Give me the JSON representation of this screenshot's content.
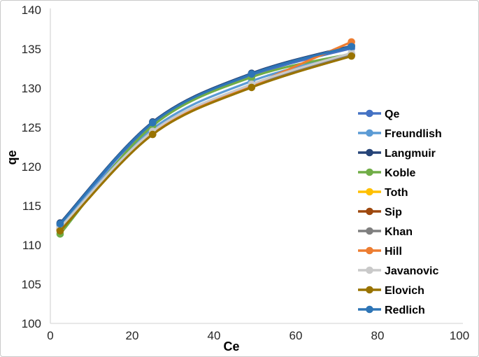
{
  "chart_data": {
    "type": "line",
    "title": "",
    "xlabel": "Ce",
    "ylabel": "qe",
    "xlim": [
      0,
      100
    ],
    "ylim": [
      100,
      140
    ],
    "xticks": [
      0,
      20,
      40,
      60,
      80,
      100
    ],
    "yticks": [
      100,
      105,
      110,
      115,
      120,
      125,
      130,
      135,
      140
    ],
    "grid": false,
    "legend_position": "right",
    "marker": "circle",
    "axis_line_color": "#d9d9d9",
    "tick_label_color": "#262626",
    "x": [
      2.4,
      25.0,
      49.2,
      73.6
    ],
    "series": [
      {
        "name": "Qe",
        "color": "#4472C4",
        "values": [
          112.6,
          125.4,
          131.6,
          135.1
        ]
      },
      {
        "name": "Freundlish",
        "color": "#5B9BD5",
        "values": [
          112.4,
          124.8,
          130.9,
          134.4
        ]
      },
      {
        "name": "Langmuir",
        "color": "#264478",
        "values": [
          112.8,
          125.7,
          131.9,
          135.4
        ]
      },
      {
        "name": "Koble",
        "color": "#70AD47",
        "values": [
          111.4,
          125.2,
          131.4,
          134.4
        ]
      },
      {
        "name": "Toth",
        "color": "#FFC000",
        "values": [
          111.9,
          124.2,
          130.2,
          134.2
        ]
      },
      {
        "name": "Sip",
        "color": "#9E480E",
        "values": [
          111.9,
          124.2,
          130.2,
          134.2
        ]
      },
      {
        "name": "Khan",
        "color": "#7F7F7F",
        "values": [
          112.1,
          124.4,
          130.4,
          134.3
        ]
      },
      {
        "name": "Hill",
        "color": "#ED7D31",
        "values": [
          112.0,
          124.3,
          130.3,
          135.9
        ]
      },
      {
        "name": "Javanovic",
        "color": "#C9C9C9",
        "values": [
          112.2,
          124.5,
          130.5,
          134.5
        ]
      },
      {
        "name": "Elovich",
        "color": "#997300",
        "values": [
          111.8,
          124.1,
          130.1,
          134.1
        ]
      },
      {
        "name": "Redlich",
        "color": "#2E75B6",
        "values": [
          112.7,
          125.6,
          131.8,
          135.3
        ]
      }
    ]
  }
}
